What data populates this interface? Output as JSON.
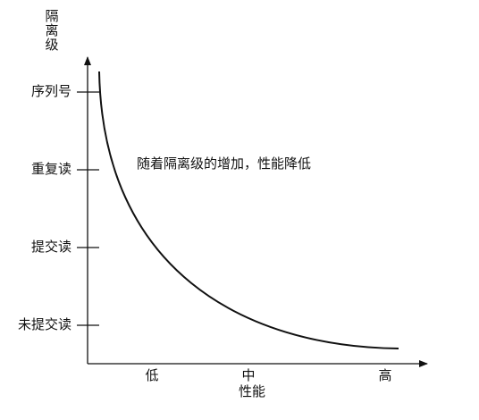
{
  "diagram": {
    "y_axis": {
      "label": "隔离级",
      "ticks": [
        "序列号",
        "重复读",
        "提交读",
        "未提交读"
      ]
    },
    "x_axis": {
      "label": "性能",
      "ticks": [
        "低",
        "中",
        "高"
      ]
    },
    "annotation": "随着隔离级的增加，性能降低",
    "colors": {
      "ink": "#111111",
      "background": "#ffffff"
    }
  }
}
